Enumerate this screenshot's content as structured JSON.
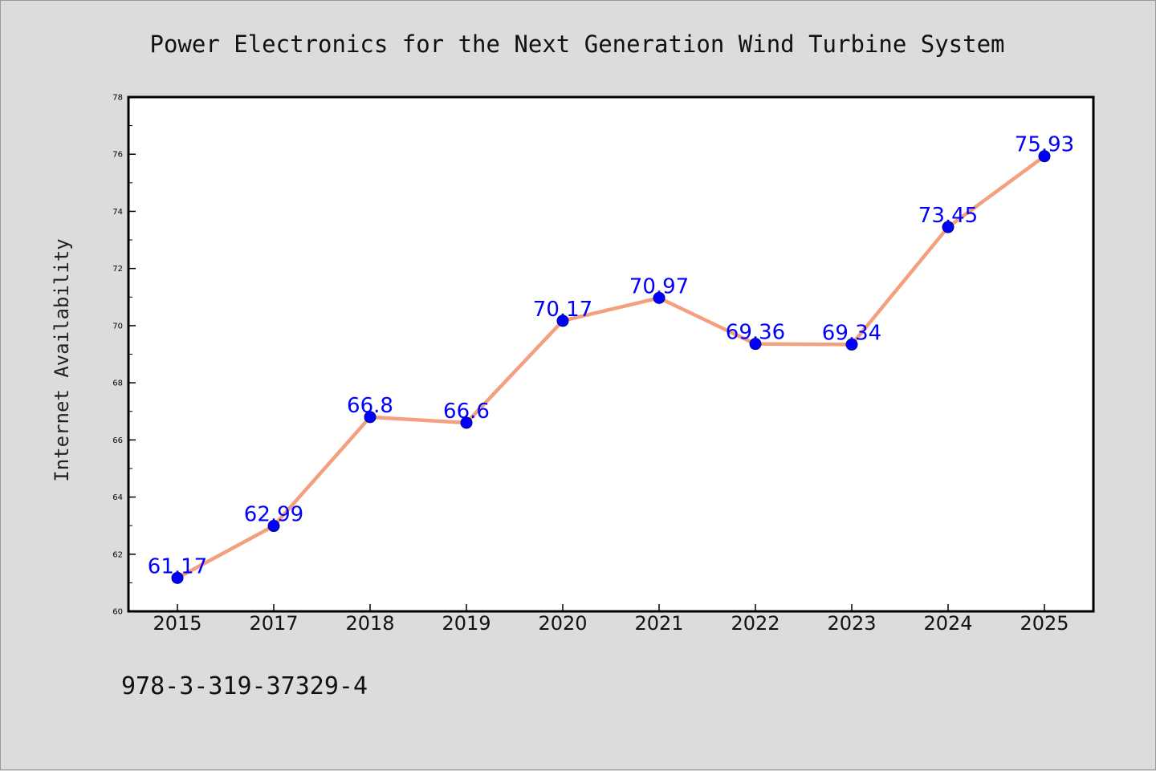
{
  "chart_data": {
    "type": "line",
    "title": "Power Electronics for the Next Generation Wind Turbine System",
    "xlabel": "",
    "ylabel": "Internet Availability",
    "categories": [
      "2015",
      "2017",
      "2018",
      "2019",
      "2020",
      "2021",
      "2022",
      "2023",
      "2024",
      "2025"
    ],
    "values": [
      61.17,
      62.99,
      66.8,
      66.6,
      70.17,
      70.97,
      69.36,
      69.34,
      73.45,
      75.93
    ],
    "data_labels": [
      "61.17",
      "62.99",
      "66.8",
      "66.6",
      "70.17",
      "70.97",
      "69.36",
      "69.34",
      "73.45",
      "75.93"
    ],
    "ylim": [
      60,
      78
    ],
    "yticks": [
      60,
      62,
      64,
      66,
      68,
      70,
      72,
      74,
      76,
      78
    ],
    "grid": false,
    "legend": "none",
    "colors": {
      "line": "#f4a07e",
      "marker": "#0000ff",
      "label": "#0000ff",
      "background": "#dcdcdc",
      "plot_background": "#ffffff"
    }
  },
  "footer": {
    "isbn": "978-3-319-37329-4"
  }
}
